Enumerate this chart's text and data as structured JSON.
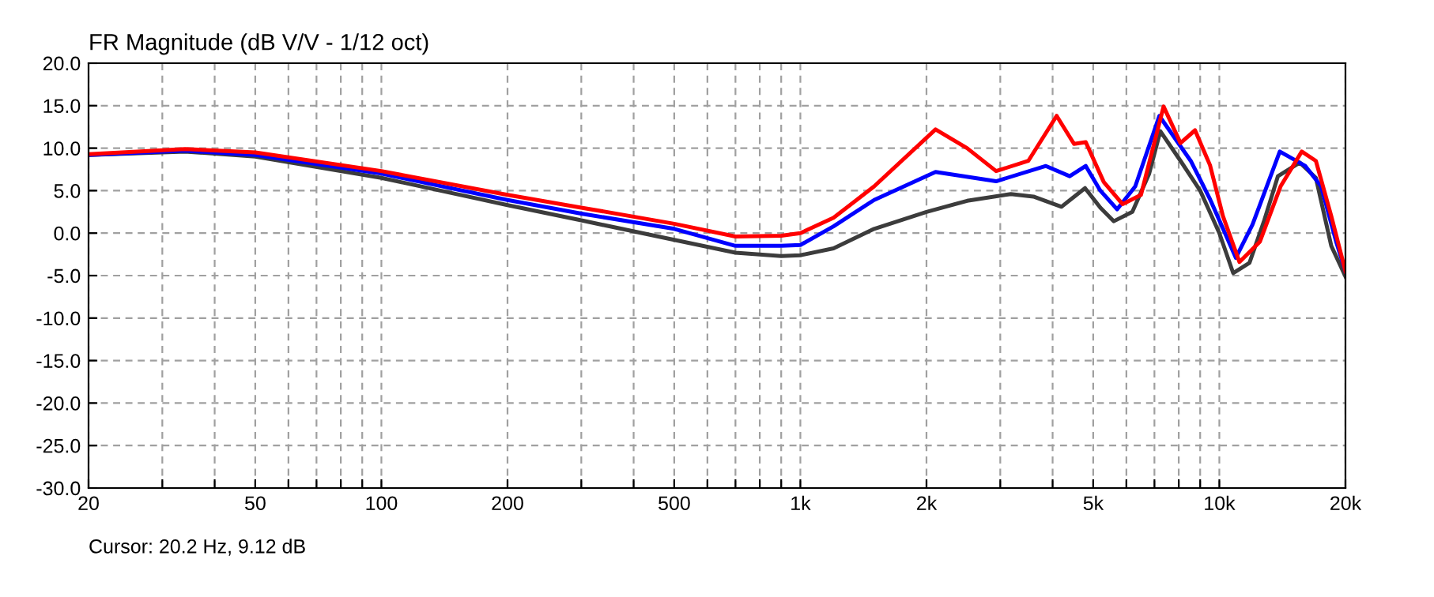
{
  "chart_data": {
    "type": "line",
    "title": "FR Magnitude (dB V/V - 1/12 oct)",
    "annotations": [
      "Cursor: 20.2 Hz, 9.12 dB"
    ],
    "log": "x",
    "grid": true,
    "line_style": "solid",
    "xlim": [
      20,
      20000
    ],
    "ylim": [
      -30,
      20
    ],
    "xticks": [
      20,
      {
        "value": 30,
        "label": null
      },
      {
        "value": 40,
        "label": null
      },
      50,
      {
        "value": 60,
        "label": null
      },
      {
        "value": 70,
        "label": null
      },
      {
        "value": 80,
        "label": null
      },
      {
        "value": 90,
        "label": null
      },
      100,
      200,
      {
        "value": 300,
        "label": null
      },
      {
        "value": 400,
        "label": null
      },
      500,
      {
        "value": 600,
        "label": null
      },
      {
        "value": 700,
        "label": null
      },
      {
        "value": 800,
        "label": null
      },
      {
        "value": 900,
        "label": null
      },
      {
        "value": 1000,
        "label": "1k"
      },
      {
        "value": 2000,
        "label": "2k"
      },
      {
        "value": 3000,
        "label": null
      },
      {
        "value": 4000,
        "label": null
      },
      {
        "value": 5000,
        "label": "5k"
      },
      {
        "value": 6000,
        "label": null
      },
      {
        "value": 7000,
        "label": null
      },
      {
        "value": 8000,
        "label": null
      },
      {
        "value": 9000,
        "label": null
      },
      {
        "value": 10000,
        "label": "10k"
      },
      {
        "value": 20000,
        "label": "20k"
      }
    ],
    "yticks": [
      {
        "value": 20,
        "label": "20.0"
      },
      {
        "value": 15,
        "label": "15.0"
      },
      {
        "value": 10,
        "label": "10.0"
      },
      {
        "value": 5,
        "label": "5.0"
      },
      {
        "value": 0,
        "label": "0.0"
      },
      {
        "value": -5,
        "label": "-5.0"
      },
      {
        "value": -10,
        "label": "-10.0"
      },
      {
        "value": -15,
        "label": "-15.0"
      },
      {
        "value": -20,
        "label": "-20.0"
      },
      {
        "value": -25,
        "label": "-25.0"
      },
      {
        "value": -30,
        "label": "-30.0"
      }
    ],
    "series": [
      {
        "color": "#3c3c3c",
        "x": [
          20,
          34,
          50,
          100,
          200,
          300,
          500,
          700,
          900,
          1000,
          1200,
          1500,
          2000,
          2500,
          3180,
          3600,
          4200,
          4780,
          5200,
          5600,
          6200,
          6800,
          7230,
          8080,
          9000,
          10000,
          10790,
          11800,
          12800,
          13800,
          15560,
          17000,
          18500,
          20000
        ],
        "values": [
          9.2,
          9.6,
          9.0,
          6.5,
          3.3,
          1.5,
          -0.8,
          -2.3,
          -2.7,
          -2.6,
          -1.8,
          0.5,
          2.5,
          3.8,
          4.6,
          4.3,
          3.1,
          5.3,
          3.0,
          1.4,
          2.5,
          7.0,
          12.0,
          8.5,
          5.0,
          0.0,
          -4.7,
          -3.5,
          1.5,
          6.7,
          8.3,
          6.5,
          -1.5,
          -5.1
        ]
      },
      {
        "color": "#0000ff",
        "x": [
          20,
          34,
          50,
          100,
          200,
          300,
          500,
          700,
          900,
          1000,
          1200,
          1500,
          2102,
          2932,
          3855,
          4394,
          4799,
          5200,
          5703,
          6300,
          7191,
          8545,
          9500,
          10950,
          12000,
          13940,
          16040,
          17500,
          19000,
          20000
        ],
        "values": [
          9.2,
          9.7,
          9.2,
          7.0,
          3.9,
          2.3,
          0.5,
          -1.5,
          -1.5,
          -1.4,
          0.8,
          3.9,
          7.2,
          6.1,
          7.9,
          6.7,
          7.9,
          5.0,
          2.8,
          5.5,
          13.8,
          8.5,
          4.0,
          -2.9,
          1.0,
          9.6,
          7.9,
          5.5,
          -1.0,
          -4.5
        ]
      },
      {
        "color": "#ff0000",
        "x": [
          20,
          34,
          50,
          100,
          200,
          300,
          500,
          700,
          900,
          1000,
          1200,
          1500,
          2102,
          2500,
          2932,
          3500,
          4090,
          4500,
          4799,
          5300,
          5877,
          6500,
          7361,
          8077,
          8750,
          9500,
          10200,
          11170,
          12500,
          14000,
          15730,
          17000,
          18500,
          20000
        ],
        "values": [
          9.3,
          9.9,
          9.5,
          7.3,
          4.5,
          3.0,
          1.1,
          -0.4,
          -0.3,
          0.0,
          1.8,
          5.5,
          12.2,
          10.0,
          7.3,
          8.5,
          13.8,
          10.5,
          10.7,
          6.0,
          3.4,
          4.5,
          14.9,
          10.6,
          12.1,
          8.0,
          2.0,
          -3.4,
          -1.0,
          5.5,
          9.6,
          8.5,
          2.0,
          -4.5
        ]
      }
    ]
  }
}
